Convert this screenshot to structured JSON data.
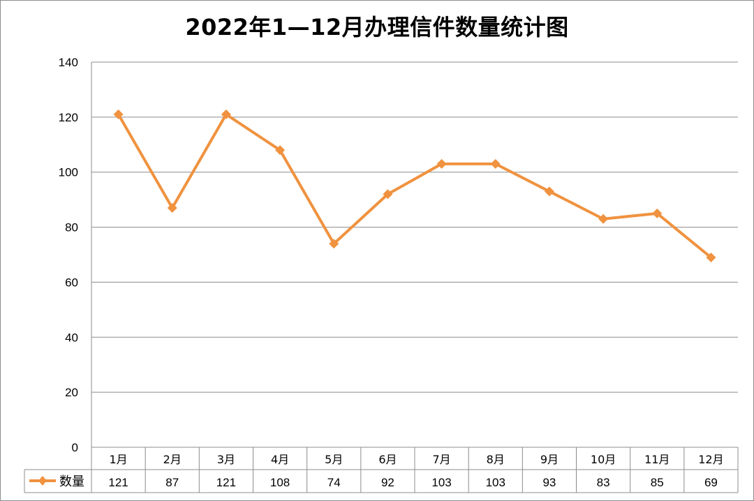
{
  "chart_data": {
    "type": "line",
    "title": "2022年1—12月办理信件数量统计图",
    "categories": [
      "1月",
      "2月",
      "3月",
      "4月",
      "5月",
      "6月",
      "7月",
      "8月",
      "9月",
      "10月",
      "11月",
      "12月"
    ],
    "series": [
      {
        "name": "数量",
        "values": [
          121,
          87,
          121,
          108,
          74,
          92,
          103,
          103,
          93,
          83,
          85,
          69
        ],
        "color": "#F0923F"
      }
    ],
    "ylim": [
      0,
      140
    ],
    "yticks": [
      0,
      20,
      40,
      60,
      80,
      100,
      120,
      140
    ],
    "grid": true,
    "legend": "data-table",
    "xlabel": "",
    "ylabel": ""
  },
  "colors": {
    "line": "#F0923F",
    "grid": "#8c8c8c",
    "text": "#000000"
  }
}
